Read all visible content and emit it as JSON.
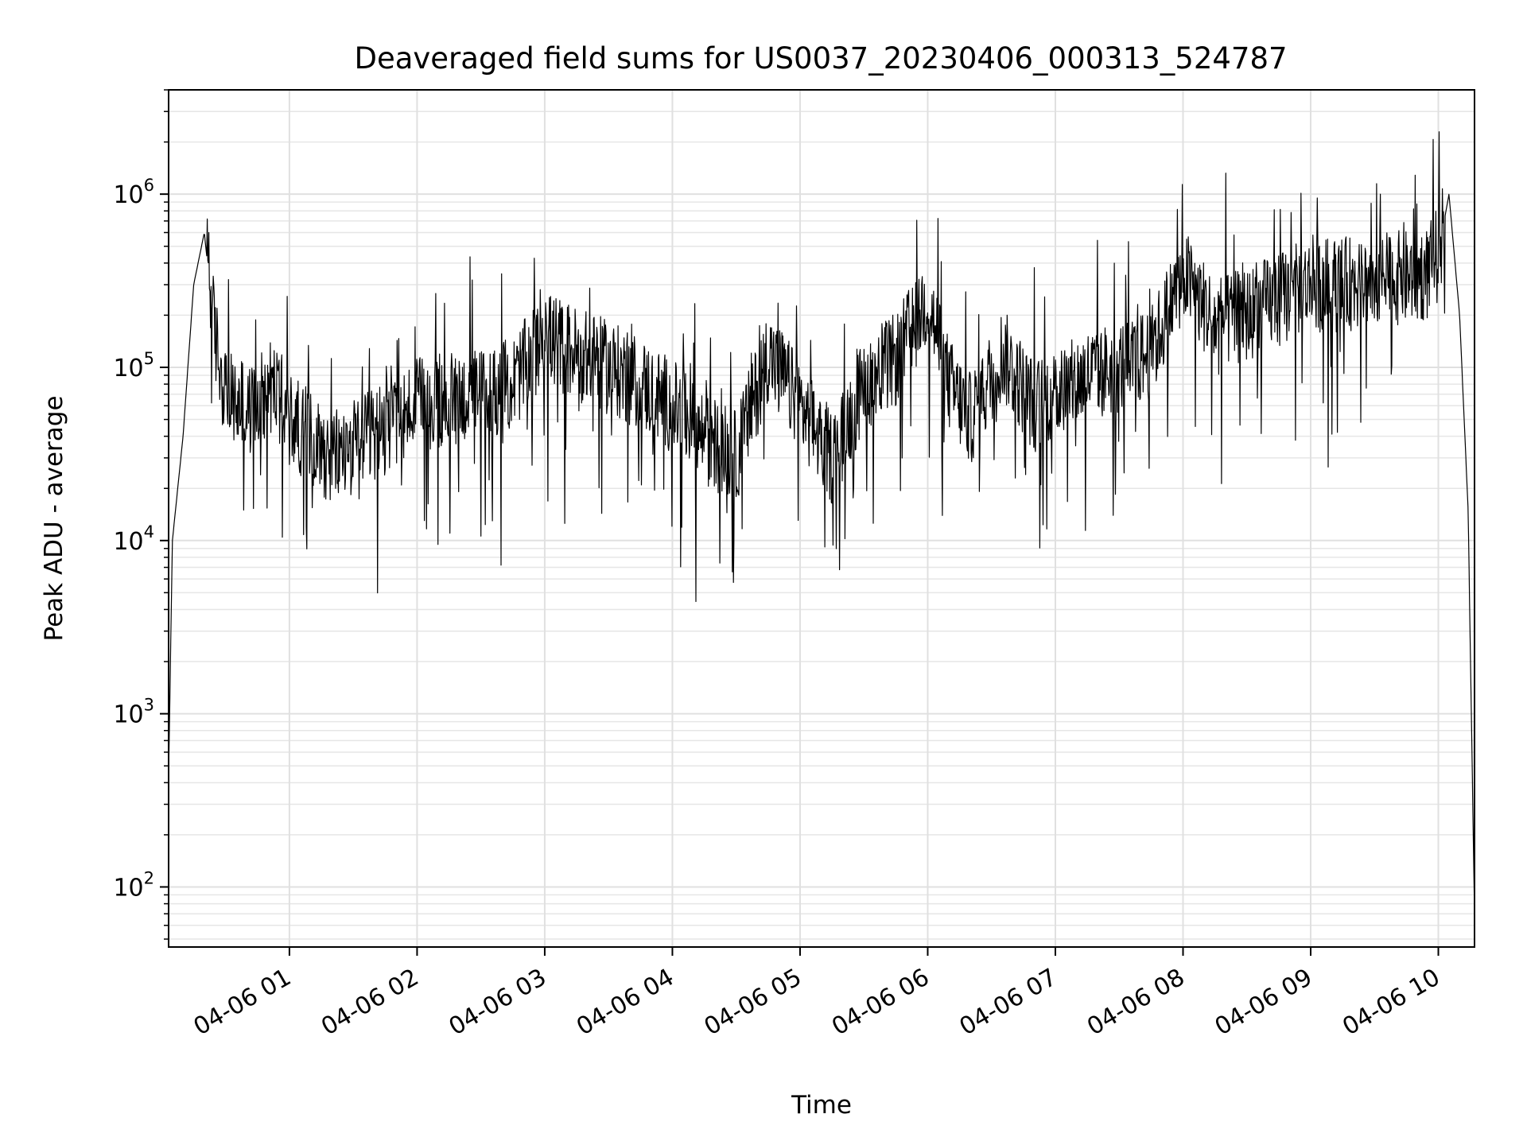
{
  "chart_data": {
    "type": "line",
    "title": "Deaveraged field sums for US0037_20230406_000313_524787",
    "xlabel": "Time",
    "ylabel": "Peak ADU - average",
    "y_scale": "log",
    "ylim": [
      45,
      4000000
    ],
    "xlim": [
      "2023-04-06 00:03:13",
      "2023-04-06 10:17:00"
    ],
    "grid": true,
    "x_tick_labels": [
      "04-06 01",
      "04-06 02",
      "04-06 03",
      "04-06 04",
      "04-06 05",
      "04-06 06",
      "04-06 07",
      "04-06 08",
      "04-06 09",
      "04-06 10"
    ],
    "y_tick_labels": [
      {
        "base": "10",
        "exp": "2",
        "value": 100
      },
      {
        "base": "10",
        "exp": "3",
        "value": 1000
      },
      {
        "base": "10",
        "exp": "4",
        "value": 10000
      },
      {
        "base": "10",
        "exp": "5",
        "value": 100000
      },
      {
        "base": "10",
        "exp": "6",
        "value": 1000000
      }
    ],
    "series": [
      {
        "color": "#000000",
        "x": [
          "2023-04-06 00:03",
          "2023-04-06 00:05",
          "2023-04-06 00:10",
          "2023-04-06 00:15",
          "2023-04-06 00:20",
          "2023-04-06 00:25",
          "2023-04-06 00:30",
          "2023-04-06 00:35",
          "2023-04-06 00:40",
          "2023-04-06 00:45",
          "2023-04-06 00:50",
          "2023-04-06 00:55",
          "2023-04-06 01:00",
          "2023-04-06 01:10",
          "2023-04-06 01:20",
          "2023-04-06 01:30",
          "2023-04-06 01:40",
          "2023-04-06 01:50",
          "2023-04-06 02:00",
          "2023-04-06 02:15",
          "2023-04-06 02:30",
          "2023-04-06 02:45",
          "2023-04-06 03:00",
          "2023-04-06 03:15",
          "2023-04-06 03:30",
          "2023-04-06 03:45",
          "2023-04-06 04:00",
          "2023-04-06 04:15",
          "2023-04-06 04:30",
          "2023-04-06 04:45",
          "2023-04-06 05:00",
          "2023-04-06 05:15",
          "2023-04-06 05:30",
          "2023-04-06 05:45",
          "2023-04-06 06:00",
          "2023-04-06 06:10",
          "2023-04-06 06:20",
          "2023-04-06 06:35",
          "2023-04-06 06:50",
          "2023-04-06 07:00",
          "2023-04-06 07:15",
          "2023-04-06 07:30",
          "2023-04-06 07:45",
          "2023-04-06 08:00",
          "2023-04-06 08:15",
          "2023-04-06 08:30",
          "2023-04-06 08:45",
          "2023-04-06 09:00",
          "2023-04-06 09:15",
          "2023-04-06 09:30",
          "2023-04-06 09:45",
          "2023-04-06 09:55",
          "2023-04-06 10:00",
          "2023-04-06 10:05",
          "2023-04-06 10:10",
          "2023-04-06 10:14",
          "2023-04-06 10:17"
        ],
        "y": [
          300,
          10000,
          40000,
          300000,
          600000,
          150000,
          70000,
          60000,
          55000,
          60000,
          80000,
          70000,
          50000,
          40000,
          30000,
          35000,
          40000,
          50000,
          60000,
          65000,
          70000,
          80000,
          150000,
          120000,
          100000,
          80000,
          60000,
          40000,
          30000,
          120000,
          60000,
          30000,
          80000,
          110000,
          250000,
          80000,
          50000,
          120000,
          60000,
          70000,
          90000,
          100000,
          120000,
          350000,
          180000,
          200000,
          250000,
          300000,
          300000,
          320000,
          330000,
          350000,
          450000,
          1000000,
          200000,
          15000,
          70
        ]
      }
    ]
  }
}
